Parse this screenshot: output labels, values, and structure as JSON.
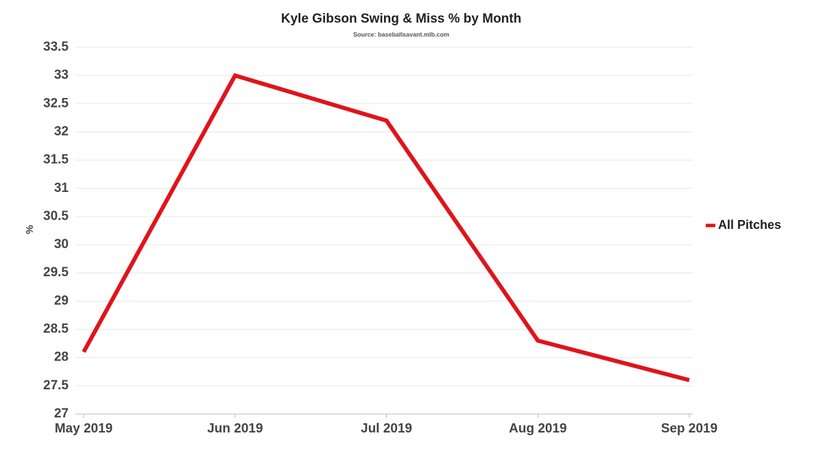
{
  "chart_data": {
    "type": "line",
    "title": "Kyle Gibson Swing & Miss % by Month",
    "subtitle": "Source: baseballsavant.mlb.com",
    "y_label": "%",
    "categories": [
      "May 2019",
      "Jun 2019",
      "Jul 2019",
      "Aug 2019",
      "Sep 2019"
    ],
    "series": [
      {
        "name": "All Pitches",
        "color": "#e0141b",
        "values": [
          28.1,
          33.0,
          32.2,
          28.3,
          27.6
        ]
      }
    ],
    "ylim": [
      27,
      33.5
    ],
    "yticks": [
      27,
      27.5,
      28,
      28.5,
      29,
      29.5,
      30,
      30.5,
      31,
      31.5,
      32,
      32.5,
      33,
      33.5
    ],
    "grid": true,
    "legend": "right"
  }
}
